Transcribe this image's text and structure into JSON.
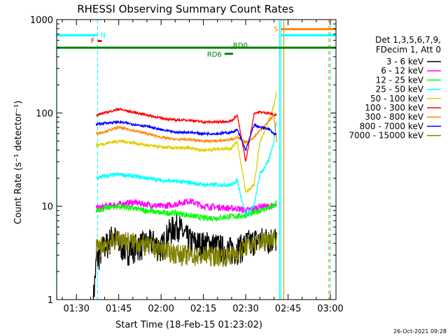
{
  "chart_data": {
    "type": "line",
    "title": "RHESSI Observing Summary Count Rates",
    "xlabel": "Start Time (18-Feb-15 01:23:02)",
    "ylabel": "Count Rate (s⁻¹ detector⁻¹)",
    "yscale": "log",
    "ylim": [
      1,
      1000
    ],
    "xlim_minutes": [
      83.0,
      182.0
    ],
    "x_tick_labels": [
      "01:30",
      "01:45",
      "02:00",
      "02:15",
      "02:30",
      "02:45",
      "03:00"
    ],
    "y_tick_labels": [
      "1",
      "10",
      "100",
      "1000"
    ],
    "legend_header": [
      "Det 1,3,5,6,7,9,",
      "FDecim 1, Att 0"
    ],
    "footer_date": "26-Oct-2021 09:28",
    "legend_position": "right",
    "series": [
      {
        "name": "3 - 6 keV",
        "color": "#000000",
        "x": [
          96,
          97,
          98,
          99,
          100,
          101,
          102,
          103,
          105,
          108,
          111,
          114,
          117,
          120,
          123,
          126,
          128,
          131,
          134,
          137,
          140,
          143,
          146,
          149,
          151,
          152,
          153,
          154,
          156,
          158,
          160,
          161
        ],
        "y": [
          1,
          2.5,
          3,
          3.5,
          3.8,
          4,
          4.5,
          5,
          4,
          3.5,
          3.8,
          4,
          4.2,
          3.6,
          5.5,
          6.5,
          5,
          4.2,
          4,
          4,
          3.8,
          3.5,
          3.5,
          3.8,
          4.2,
          4,
          4.5,
          4.2,
          4.5,
          4.5,
          4.6,
          4.5
        ]
      },
      {
        "name": "6 - 12 keV",
        "color": "#ff00ff",
        "x": [
          97,
          100,
          105,
          110,
          115,
          120,
          125,
          130,
          135,
          140,
          145,
          147,
          150,
          153,
          155,
          160,
          161
        ],
        "y": [
          9.5,
          10,
          10.5,
          11,
          10.5,
          10,
          10.5,
          11.5,
          10,
          9.8,
          9.5,
          9.5,
          9,
          9.5,
          10,
          10,
          9.8
        ]
      },
      {
        "name": "12 - 25 keV",
        "color": "#00ff00",
        "x": [
          97,
          100,
          105,
          110,
          115,
          120,
          125,
          130,
          135,
          140,
          145,
          147,
          150,
          153,
          155,
          160,
          161
        ],
        "y": [
          9,
          9.5,
          10,
          9.5,
          9,
          8.5,
          8.5,
          8,
          7.5,
          7.5,
          7.8,
          7.8,
          8,
          8.5,
          9,
          10,
          11
        ]
      },
      {
        "name": "25 - 50 keV",
        "color": "#00ffff",
        "x": [
          97,
          100,
          105,
          110,
          115,
          120,
          125,
          130,
          135,
          140,
          145,
          147,
          150,
          153,
          155,
          158,
          160,
          161
        ],
        "y": [
          20,
          21,
          22,
          21,
          20,
          19,
          18.5,
          18,
          17,
          17,
          17,
          19,
          8,
          10,
          22,
          30,
          50,
          85
        ]
      },
      {
        "name": "50 - 100 keV",
        "color": "#e0d000",
        "x": [
          97,
          100,
          105,
          110,
          115,
          120,
          125,
          130,
          135,
          140,
          145,
          147,
          150,
          153,
          155,
          158,
          160,
          161
        ],
        "y": [
          45,
          47,
          50,
          48,
          45,
          43,
          42,
          42,
          40,
          41,
          42,
          50,
          14,
          17,
          48,
          80,
          120,
          170
        ]
      },
      {
        "name": "100 - 300 keV",
        "color": "#ff0000",
        "x": [
          97,
          100,
          105,
          110,
          115,
          120,
          125,
          130,
          135,
          140,
          145,
          147,
          150,
          153,
          155,
          158,
          160,
          161
        ],
        "y": [
          95,
          100,
          110,
          102,
          95,
          88,
          84,
          84,
          80,
          80,
          82,
          95,
          30,
          100,
          102,
          100,
          95,
          95
        ]
      },
      {
        "name": "300 - 800 keV",
        "color": "#ff8800",
        "x": [
          97,
          100,
          105,
          110,
          115,
          120,
          125,
          130,
          135,
          140,
          145,
          147,
          150,
          153,
          155,
          158,
          160,
          161
        ],
        "y": [
          60,
          63,
          70,
          65,
          60,
          55,
          52,
          52,
          50,
          50,
          52,
          55,
          48,
          55,
          65,
          80,
          95,
          48
        ]
      },
      {
        "name": "800 - 7000 keV",
        "color": "#0000ff",
        "x": [
          97,
          100,
          105,
          110,
          115,
          120,
          125,
          130,
          135,
          140,
          145,
          147,
          150,
          153,
          155,
          158,
          160,
          161
        ],
        "y": [
          75,
          78,
          80,
          76,
          72,
          66,
          62,
          62,
          60,
          60,
          62,
          66,
          40,
          75,
          70,
          68,
          60,
          58
        ]
      },
      {
        "name": "7000 - 15000 keV",
        "color": "#808000",
        "x": [
          97,
          100,
          105,
          110,
          115,
          120,
          125,
          130,
          135,
          140,
          145,
          147,
          150,
          153,
          155,
          158,
          160,
          161
        ],
        "y": [
          3.5,
          4,
          4.5,
          4.2,
          3.8,
          3.5,
          3.2,
          3,
          3,
          3,
          3,
          3.2,
          3.8,
          4,
          4.2,
          4.5,
          4.8,
          4.5
        ]
      }
    ],
    "flags": [
      {
        "label": "N",
        "color": "#00ffff",
        "x_start": 83.0,
        "x_end": 97.5,
        "y": 680
      },
      {
        "label": "F",
        "color": "#ff0000",
        "x_start": 97.5,
        "x_end": 99.0,
        "y": 590
      },
      {
        "label": "S",
        "color": "#ff8800",
        "x_start": 162.5,
        "x_end": 182.0,
        "y": 790
      },
      {
        "label": "",
        "color": "#00ffff",
        "x_start": 162.5,
        "x_end": 182.0,
        "y": 680
      },
      {
        "label": "",
        "color": "#008000",
        "x_start": 83.0,
        "x_end": 182.0,
        "y": 500
      },
      {
        "label": "RD0",
        "color": "#008000",
        "x_start": 144.5,
        "x_end": 146.5,
        "y": 500
      },
      {
        "label": "RD6",
        "color": "#008000",
        "x_start": 142.5,
        "x_end": 145.5,
        "y": 430
      }
    ],
    "vertical_lines": [
      {
        "x": 83.0,
        "color": "#00ffff",
        "style": "solid"
      },
      {
        "x": 97.5,
        "color": "#00ffff",
        "style": "dashed"
      },
      {
        "x": 162.0,
        "color": "#00ffff",
        "style": "solid"
      },
      {
        "x": 162.5,
        "color": "#00ffff",
        "style": "solid"
      },
      {
        "x": 163.5,
        "color": "#ff8800",
        "style": "solid"
      },
      {
        "x": 179.5,
        "color": "#ff8800",
        "style": "dashed"
      },
      {
        "x": 180.0,
        "color": "#00ffff",
        "style": "dashed"
      }
    ]
  }
}
